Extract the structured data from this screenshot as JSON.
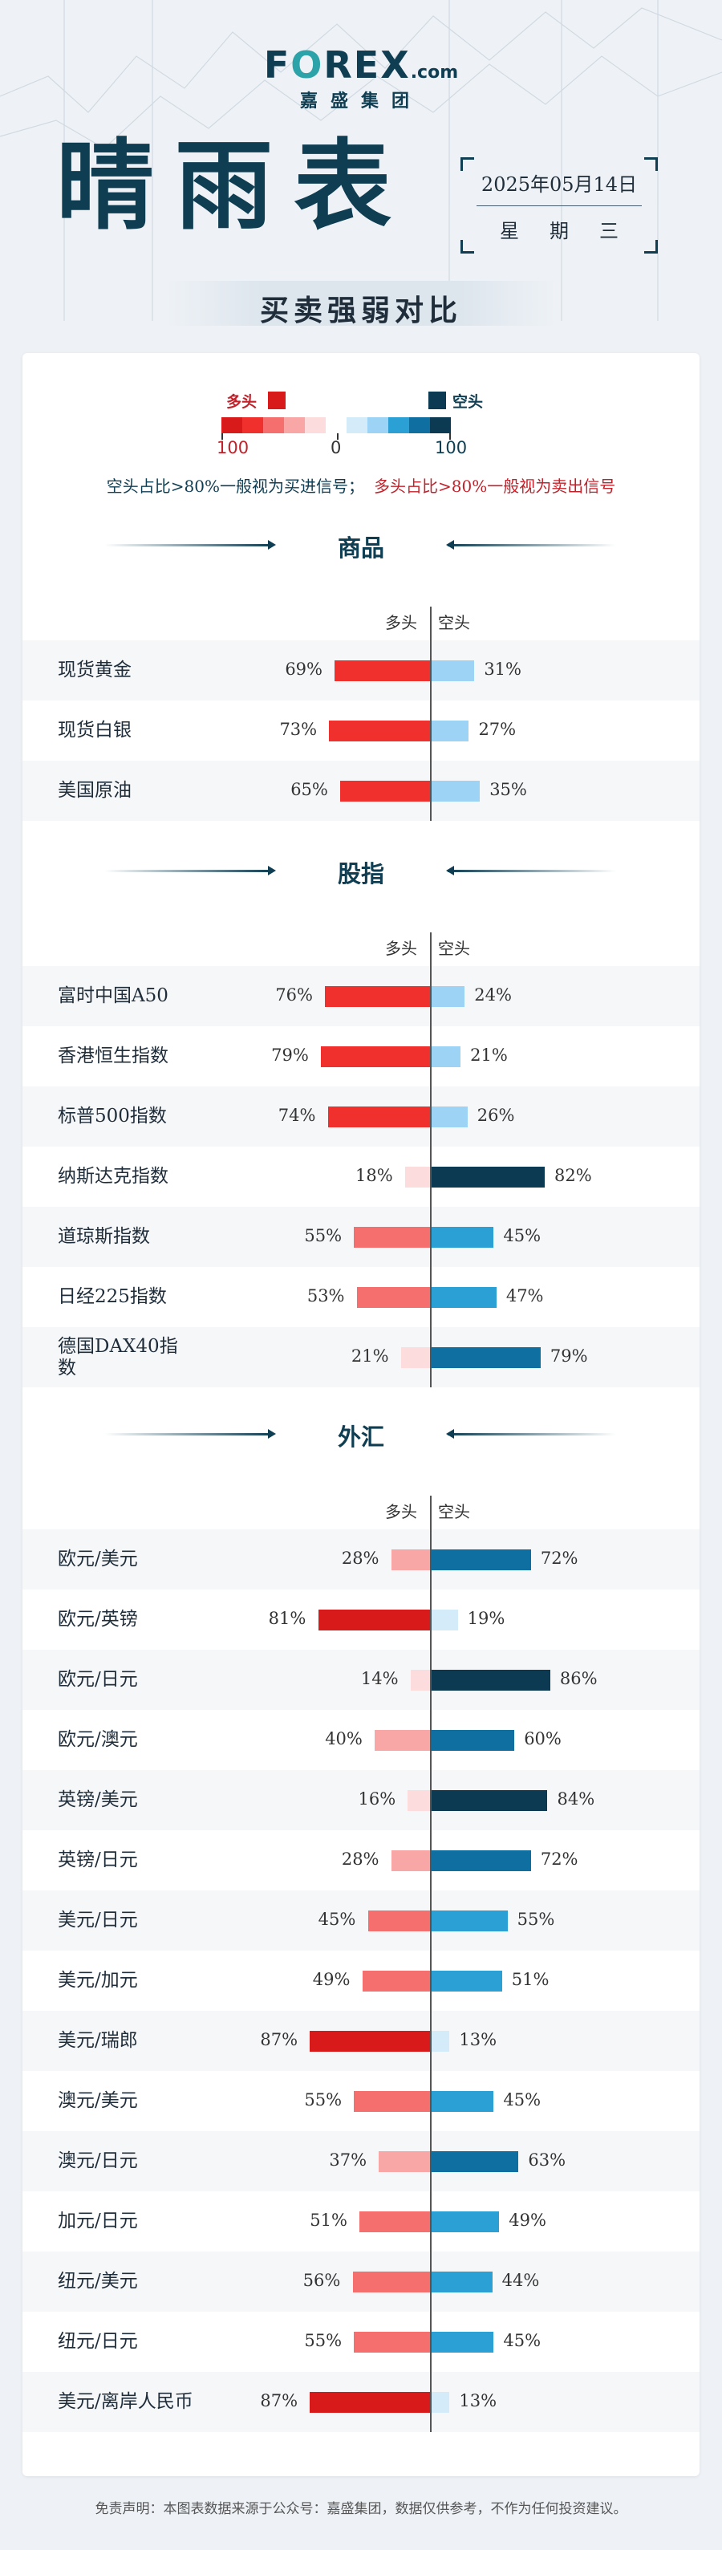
{
  "brand": {
    "logo_text_pre": "F",
    "logo_text_o": "O",
    "logo_text_post": "REX",
    "logo_suffix": ".com",
    "logo_sub": "嘉盛集团"
  },
  "header": {
    "title": "晴雨表",
    "date": "2025年05月14日",
    "weekday": "星期三",
    "subtitle": "买卖强弱对比"
  },
  "legend": {
    "long_label": "多头",
    "short_label": "空头",
    "min_label": "100",
    "mid_label": "0",
    "max_label": "100",
    "note_short": "空头占比>80%一般视为买进信号；",
    "note_long": "多头占比>80%一般视为卖出信号"
  },
  "colors": {
    "long_scale": [
      "#d81a1a",
      "#f0302d",
      "#f56f6f",
      "#f9a6a6",
      "#fcdcdc"
    ],
    "short_scale": [
      "#d4ebfa",
      "#9dd3f4",
      "#2aa0d4",
      "#0f6fa0",
      "#0b3a52"
    ],
    "brand": "#0f3d52"
  },
  "chart_data": {
    "type": "bar",
    "subtype": "diverging-100",
    "column_labels": {
      "long": "多头",
      "short": "空头"
    },
    "sections": [
      {
        "title": "商品",
        "items": [
          {
            "name": "现货黄金",
            "long": 69,
            "short": 31
          },
          {
            "name": "现货白银",
            "long": 73,
            "short": 27
          },
          {
            "name": "美国原油",
            "long": 65,
            "short": 35
          }
        ]
      },
      {
        "title": "股指",
        "items": [
          {
            "name": "富时中国A50",
            "long": 76,
            "short": 24
          },
          {
            "name": "香港恒生指数",
            "long": 79,
            "short": 21
          },
          {
            "name": "标普500指数",
            "long": 74,
            "short": 26
          },
          {
            "name": "纳斯达克指数",
            "long": 18,
            "short": 82
          },
          {
            "name": "道琼斯指数",
            "long": 55,
            "short": 45
          },
          {
            "name": "日经225指数",
            "long": 53,
            "short": 47
          },
          {
            "name": "德国DAX40指数",
            "long": 21,
            "short": 79
          }
        ]
      },
      {
        "title": "外汇",
        "items": [
          {
            "name": "欧元/美元",
            "long": 28,
            "short": 72
          },
          {
            "name": "欧元/英镑",
            "long": 81,
            "short": 19
          },
          {
            "name": "欧元/日元",
            "long": 14,
            "short": 86
          },
          {
            "name": "欧元/澳元",
            "long": 40,
            "short": 60
          },
          {
            "name": "英镑/美元",
            "long": 16,
            "short": 84
          },
          {
            "name": "英镑/日元",
            "long": 28,
            "short": 72
          },
          {
            "name": "美元/日元",
            "long": 45,
            "short": 55
          },
          {
            "name": "美元/加元",
            "long": 49,
            "short": 51
          },
          {
            "name": "美元/瑞郎",
            "long": 87,
            "short": 13
          },
          {
            "name": "澳元/美元",
            "long": 55,
            "short": 45
          },
          {
            "name": "澳元/日元",
            "long": 37,
            "short": 63
          },
          {
            "name": "加元/日元",
            "long": 51,
            "short": 49
          },
          {
            "name": "纽元/美元",
            "long": 56,
            "short": 44
          },
          {
            "name": "纽元/日元",
            "long": 55,
            "short": 45
          },
          {
            "name": "美元/离岸人民币",
            "long": 87,
            "short": 13
          }
        ]
      }
    ]
  },
  "footer": {
    "disclaimer": "免责声明：本图表数据来源于公众号：嘉盛集团，数据仅供参考，不作为任何投资建议。"
  }
}
